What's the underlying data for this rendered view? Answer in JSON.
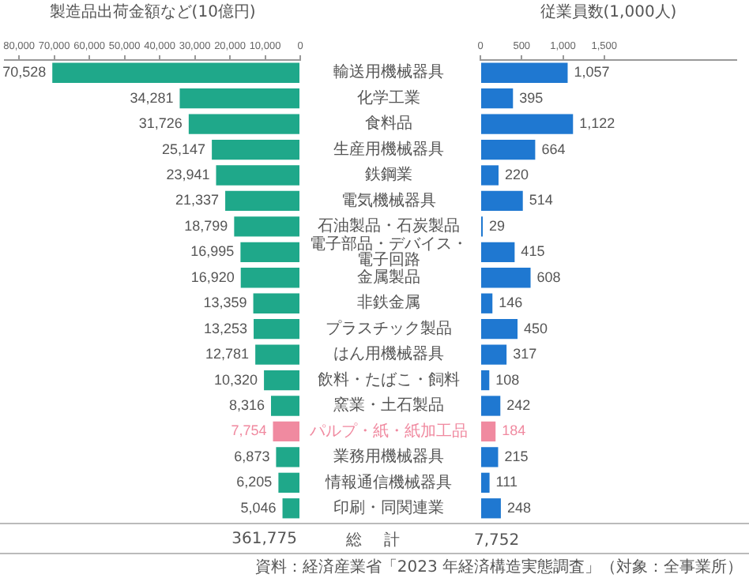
{
  "chart_data": [
    {
      "type": "bar",
      "orientation": "horizontal",
      "xlabel": "製造品出荷金額など(10億円)",
      "categories": [
        "輸送用機械器具",
        "化学工業",
        "食料品",
        "生産用機械器具",
        "鉄鋼業",
        "電気機械器具",
        "石油製品・石炭製品",
        "電子部品・デバイス・電子回路",
        "金属製品",
        "非鉄金属",
        "プラスチック製品",
        "はん用機械器具",
        "飲料・たばこ・飼料",
        "窯業・土石製品",
        "パルプ・紙・紙加工品",
        "業務用機械器具",
        "情報通信機械器具",
        "印刷・同関連業"
      ],
      "values": [
        70528,
        34281,
        31726,
        25147,
        23941,
        21337,
        18799,
        16995,
        16920,
        13359,
        13253,
        12781,
        10320,
        8316,
        7754,
        6873,
        6205,
        5046
      ],
      "color": "#1fa88a",
      "colors": [
        "#1fa88a",
        "#1fa88a",
        "#1fa88a",
        "#1fa88a",
        "#1fa88a",
        "#1fa88a",
        "#1fa88a",
        "#1fa88a",
        "#1fa88a",
        "#1fa88a",
        "#1fa88a",
        "#1fa88a",
        "#1fa88a",
        "#1fa88a",
        "#f08aa0",
        "#1fa88a",
        "#1fa88a",
        "#1fa88a"
      ],
      "xlim": [
        84000,
        0
      ],
      "xticks": [
        {
          "value": 80000,
          "label": "80,000"
        },
        {
          "value": 70000,
          "label": "70,000"
        },
        {
          "value": 60000,
          "label": "60,000"
        },
        {
          "value": 50000,
          "label": "50,000"
        },
        {
          "value": 40000,
          "label": "40,000"
        },
        {
          "value": 30000,
          "label": "30,000"
        },
        {
          "value": 20000,
          "label": "20,000"
        },
        {
          "value": 10000,
          "label": "10,000"
        },
        {
          "value": 0,
          "label": "0"
        }
      ],
      "value_labels": [
        "70,528",
        "34,281",
        "31,726",
        "25,147",
        "23,941",
        "21,337",
        "18,799",
        "16,995",
        "16,920",
        "13,359",
        "13,253",
        "12,781",
        "10,320",
        "8,316",
        "7,754",
        "6,873",
        "6,205",
        "5,046"
      ],
      "grid": false,
      "annotations": [
        "361,775",
        "総計"
      ]
    },
    {
      "type": "bar",
      "orientation": "horizontal",
      "xlabel": "従業員数(1,000人)",
      "categories": [
        null,
        null,
        null,
        null,
        null,
        null,
        null,
        null,
        null,
        null,
        null,
        null,
        null,
        null,
        null,
        null,
        null,
        null
      ],
      "values": [
        1057,
        395,
        1122,
        664,
        220,
        514,
        29,
        415,
        608,
        146,
        450,
        317,
        108,
        242,
        184,
        215,
        111,
        248
      ],
      "color": "#1f78d1",
      "colors": [
        "#1f78d1",
        "#1f78d1",
        "#1f78d1",
        "#1f78d1",
        "#1f78d1",
        "#1f78d1",
        "#1f78d1",
        "#1f78d1",
        "#1f78d1",
        "#1f78d1",
        "#1f78d1",
        "#1f78d1",
        "#1f78d1",
        "#1f78d1",
        "#f08aa0",
        "#1f78d1",
        "#1f78d1",
        "#1f78d1"
      ],
      "xlim": [
        0,
        3100
      ],
      "xticks": [
        {
          "value": 0,
          "label": "0"
        },
        {
          "value": 500,
          "label": "500"
        },
        {
          "value": 1000,
          "label": "1,000"
        },
        {
          "value": 1500,
          "label": "1,500"
        }
      ],
      "value_labels": [
        "1,057",
        "395",
        "1,122",
        "664",
        "220",
        "514",
        "29",
        "415",
        "608",
        "146",
        "450",
        "317",
        "108",
        "242",
        "184",
        "215",
        "111",
        "248"
      ],
      "grid": false,
      "tick_labels": "x",
      "annotations": [
        "7,752",
        "資料：経済産業省「2023 年経済構造実態調査」（対象：全事業所）"
      ]
    }
  ]
}
